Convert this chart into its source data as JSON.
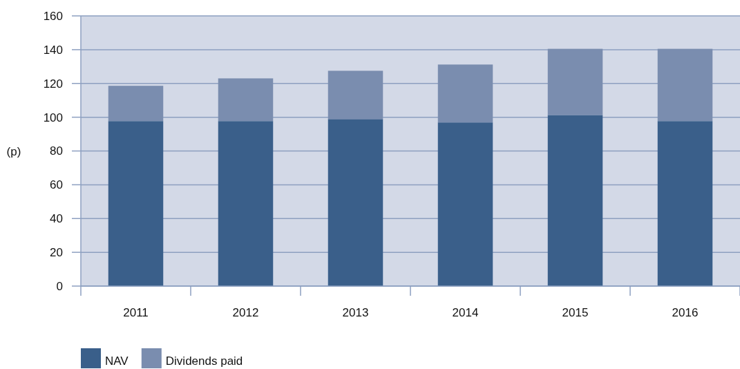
{
  "chart_data": {
    "type": "bar",
    "stacked": true,
    "ylabel": "(p)",
    "categories": [
      "2011",
      "2012",
      "2013",
      "2014",
      "2015",
      "2016"
    ],
    "series": [
      {
        "name": "NAV",
        "color": "#3a5f8a",
        "values": [
          97.7,
          97.7,
          98.9,
          96.9,
          101.3,
          97.7
        ]
      },
      {
        "name": "Dividends paid",
        "color": "#7a8daf",
        "values": [
          20.9,
          25.3,
          28.6,
          34.3,
          39.2,
          42.8
        ]
      }
    ],
    "ylim": [
      0,
      160
    ],
    "yticks": [
      0,
      20,
      40,
      60,
      80,
      100,
      120,
      140,
      160
    ],
    "grid": "y",
    "legend": "bottom left"
  }
}
